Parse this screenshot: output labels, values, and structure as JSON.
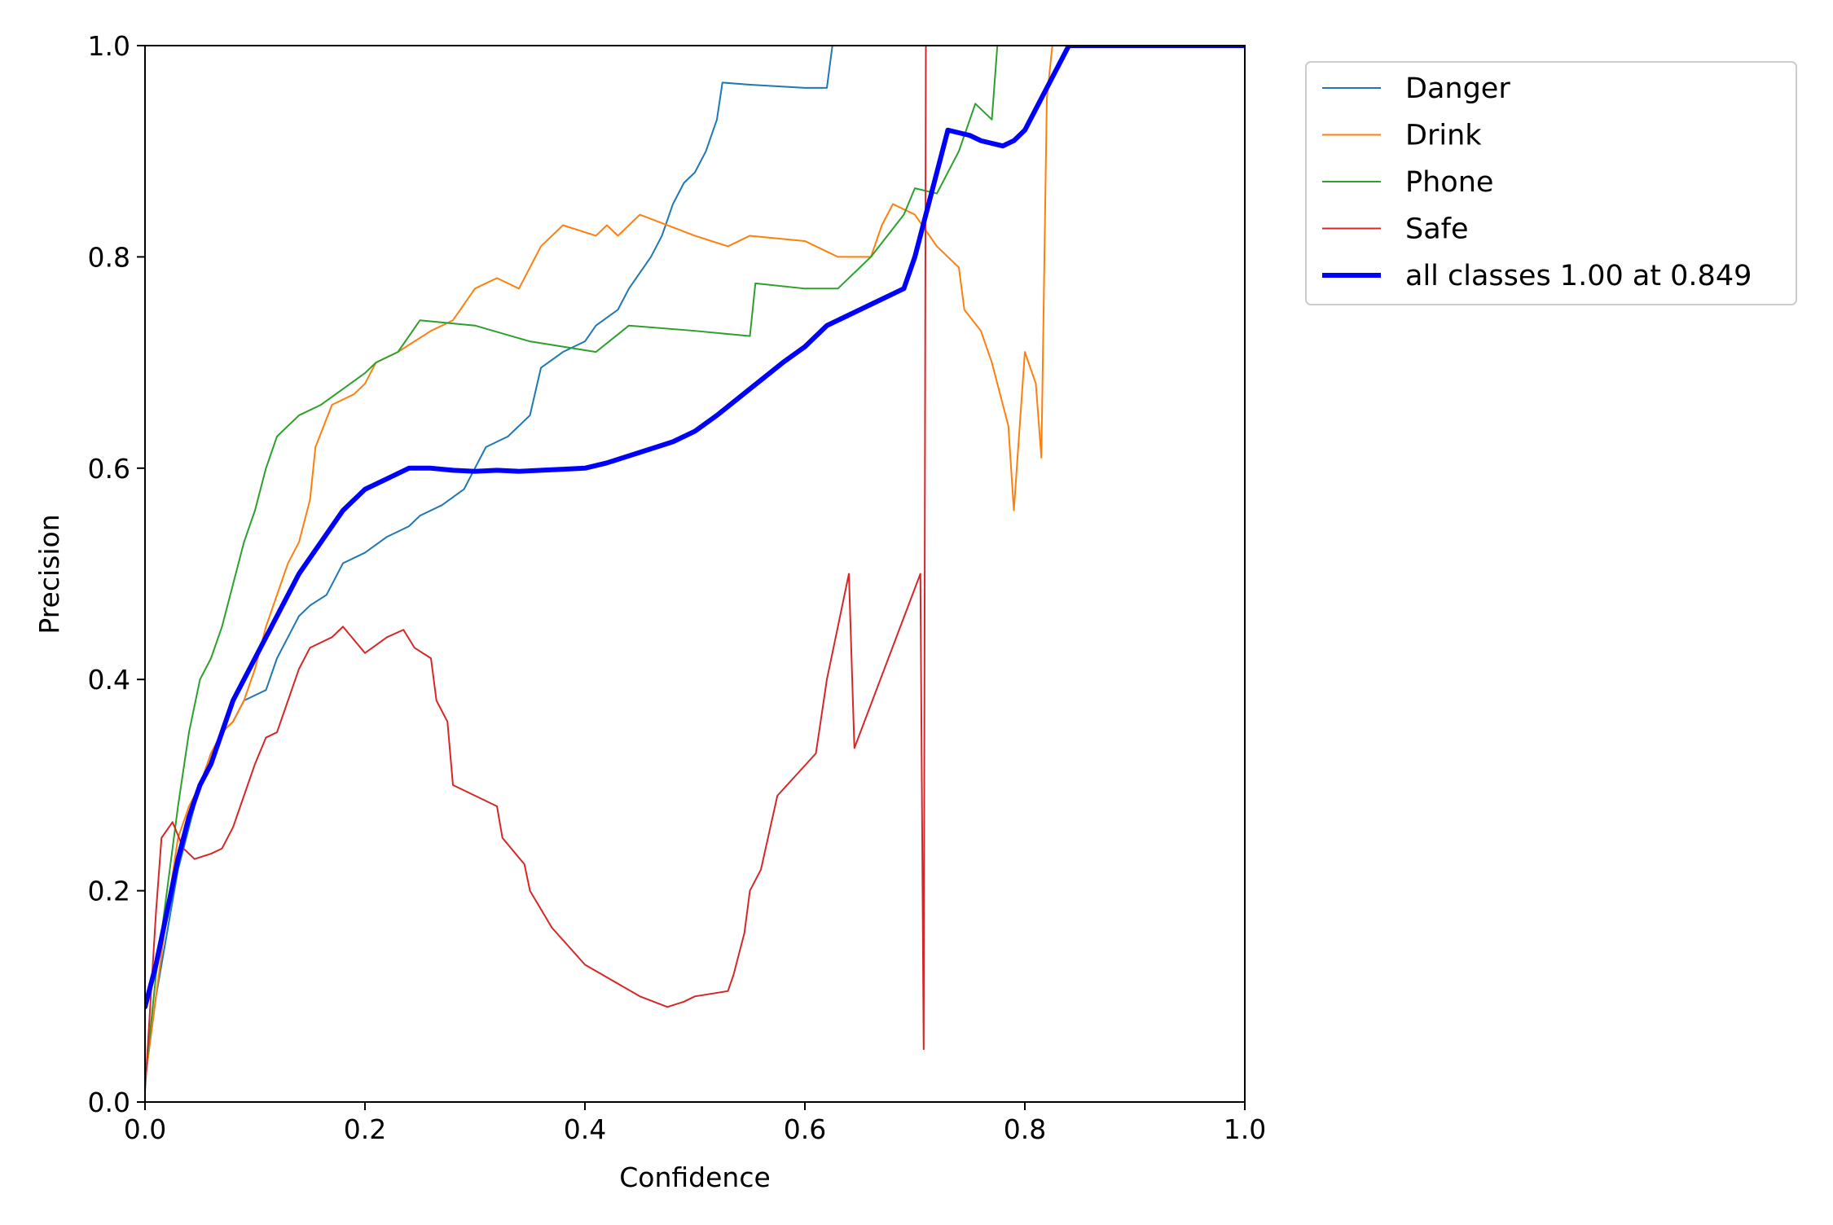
{
  "chart_data": {
    "type": "line",
    "xlabel": "Confidence",
    "ylabel": "Precision",
    "xlim": [
      0,
      1
    ],
    "ylim": [
      0,
      1
    ],
    "xticks": [
      "0.0",
      "0.2",
      "0.4",
      "0.6",
      "0.8",
      "1.0"
    ],
    "yticks": [
      "0.0",
      "0.2",
      "0.4",
      "0.6",
      "0.8",
      "1.0"
    ],
    "grid": false,
    "legend_position": "outside-top-right",
    "series": [
      {
        "name": "Danger",
        "color": "#1f77b4",
        "width": 2,
        "points": [
          [
            0.0,
            0.02
          ],
          [
            0.005,
            0.06
          ],
          [
            0.01,
            0.1
          ],
          [
            0.02,
            0.16
          ],
          [
            0.03,
            0.22
          ],
          [
            0.04,
            0.26
          ],
          [
            0.05,
            0.3
          ],
          [
            0.06,
            0.33
          ],
          [
            0.07,
            0.35
          ],
          [
            0.08,
            0.36
          ],
          [
            0.09,
            0.38
          ],
          [
            0.1,
            0.385
          ],
          [
            0.11,
            0.39
          ],
          [
            0.12,
            0.42
          ],
          [
            0.13,
            0.44
          ],
          [
            0.14,
            0.46
          ],
          [
            0.15,
            0.47
          ],
          [
            0.165,
            0.48
          ],
          [
            0.18,
            0.51
          ],
          [
            0.2,
            0.52
          ],
          [
            0.22,
            0.535
          ],
          [
            0.24,
            0.545
          ],
          [
            0.25,
            0.555
          ],
          [
            0.27,
            0.565
          ],
          [
            0.29,
            0.58
          ],
          [
            0.3,
            0.6
          ],
          [
            0.31,
            0.62
          ],
          [
            0.33,
            0.63
          ],
          [
            0.35,
            0.65
          ],
          [
            0.36,
            0.695
          ],
          [
            0.38,
            0.71
          ],
          [
            0.4,
            0.72
          ],
          [
            0.41,
            0.735
          ],
          [
            0.43,
            0.75
          ],
          [
            0.44,
            0.77
          ],
          [
            0.46,
            0.8
          ],
          [
            0.47,
            0.82
          ],
          [
            0.48,
            0.85
          ],
          [
            0.49,
            0.87
          ],
          [
            0.5,
            0.88
          ],
          [
            0.51,
            0.9
          ],
          [
            0.52,
            0.93
          ],
          [
            0.525,
            0.965
          ],
          [
            0.55,
            0.963
          ],
          [
            0.6,
            0.96
          ],
          [
            0.62,
            0.96
          ],
          [
            0.625,
            1.0
          ],
          [
            0.63,
            1.0
          ]
        ]
      },
      {
        "name": "Drink",
        "color": "#ff7f0e",
        "width": 2,
        "points": [
          [
            0.0,
            0.02
          ],
          [
            0.01,
            0.1
          ],
          [
            0.02,
            0.18
          ],
          [
            0.03,
            0.25
          ],
          [
            0.04,
            0.28
          ],
          [
            0.05,
            0.3
          ],
          [
            0.06,
            0.33
          ],
          [
            0.07,
            0.35
          ],
          [
            0.08,
            0.36
          ],
          [
            0.09,
            0.38
          ],
          [
            0.1,
            0.41
          ],
          [
            0.11,
            0.45
          ],
          [
            0.12,
            0.48
          ],
          [
            0.13,
            0.51
          ],
          [
            0.14,
            0.53
          ],
          [
            0.15,
            0.57
          ],
          [
            0.155,
            0.62
          ],
          [
            0.17,
            0.66
          ],
          [
            0.19,
            0.67
          ],
          [
            0.2,
            0.68
          ],
          [
            0.21,
            0.7
          ],
          [
            0.23,
            0.71
          ],
          [
            0.26,
            0.73
          ],
          [
            0.28,
            0.74
          ],
          [
            0.3,
            0.77
          ],
          [
            0.32,
            0.78
          ],
          [
            0.34,
            0.77
          ],
          [
            0.36,
            0.81
          ],
          [
            0.38,
            0.83
          ],
          [
            0.41,
            0.82
          ],
          [
            0.42,
            0.83
          ],
          [
            0.43,
            0.82
          ],
          [
            0.45,
            0.84
          ],
          [
            0.5,
            0.82
          ],
          [
            0.53,
            0.81
          ],
          [
            0.55,
            0.82
          ],
          [
            0.6,
            0.815
          ],
          [
            0.63,
            0.8
          ],
          [
            0.66,
            0.8
          ],
          [
            0.67,
            0.83
          ],
          [
            0.68,
            0.85
          ],
          [
            0.7,
            0.84
          ],
          [
            0.72,
            0.81
          ],
          [
            0.74,
            0.79
          ],
          [
            0.745,
            0.75
          ],
          [
            0.76,
            0.73
          ],
          [
            0.77,
            0.7
          ],
          [
            0.785,
            0.64
          ],
          [
            0.79,
            0.56
          ],
          [
            0.8,
            0.71
          ],
          [
            0.81,
            0.68
          ],
          [
            0.815,
            0.61
          ],
          [
            0.82,
            0.95
          ],
          [
            0.825,
            1.0
          ]
        ]
      },
      {
        "name": "Phone",
        "color": "#2ca02c",
        "width": 2,
        "points": [
          [
            0.0,
            0.02
          ],
          [
            0.01,
            0.12
          ],
          [
            0.02,
            0.2
          ],
          [
            0.03,
            0.28
          ],
          [
            0.04,
            0.35
          ],
          [
            0.05,
            0.4
          ],
          [
            0.06,
            0.42
          ],
          [
            0.07,
            0.45
          ],
          [
            0.08,
            0.49
          ],
          [
            0.09,
            0.53
          ],
          [
            0.1,
            0.56
          ],
          [
            0.11,
            0.6
          ],
          [
            0.12,
            0.63
          ],
          [
            0.14,
            0.65
          ],
          [
            0.16,
            0.66
          ],
          [
            0.18,
            0.675
          ],
          [
            0.2,
            0.69
          ],
          [
            0.21,
            0.7
          ],
          [
            0.23,
            0.71
          ],
          [
            0.25,
            0.74
          ],
          [
            0.3,
            0.735
          ],
          [
            0.35,
            0.72
          ],
          [
            0.38,
            0.715
          ],
          [
            0.41,
            0.71
          ],
          [
            0.44,
            0.735
          ],
          [
            0.5,
            0.73
          ],
          [
            0.55,
            0.725
          ],
          [
            0.555,
            0.775
          ],
          [
            0.6,
            0.77
          ],
          [
            0.63,
            0.77
          ],
          [
            0.66,
            0.8
          ],
          [
            0.69,
            0.84
          ],
          [
            0.7,
            0.865
          ],
          [
            0.72,
            0.86
          ],
          [
            0.74,
            0.9
          ],
          [
            0.755,
            0.945
          ],
          [
            0.77,
            0.93
          ],
          [
            0.775,
            1.0
          ]
        ]
      },
      {
        "name": "Safe",
        "color": "#d62728",
        "width": 2,
        "points": [
          [
            0.0,
            0.01
          ],
          [
            0.01,
            0.18
          ],
          [
            0.015,
            0.25
          ],
          [
            0.025,
            0.265
          ],
          [
            0.035,
            0.24
          ],
          [
            0.045,
            0.23
          ],
          [
            0.06,
            0.235
          ],
          [
            0.07,
            0.24
          ],
          [
            0.08,
            0.26
          ],
          [
            0.09,
            0.29
          ],
          [
            0.1,
            0.32
          ],
          [
            0.11,
            0.345
          ],
          [
            0.12,
            0.35
          ],
          [
            0.13,
            0.38
          ],
          [
            0.14,
            0.41
          ],
          [
            0.15,
            0.43
          ],
          [
            0.17,
            0.44
          ],
          [
            0.18,
            0.45
          ],
          [
            0.2,
            0.425
          ],
          [
            0.22,
            0.44
          ],
          [
            0.235,
            0.447
          ],
          [
            0.245,
            0.43
          ],
          [
            0.26,
            0.42
          ],
          [
            0.265,
            0.38
          ],
          [
            0.275,
            0.36
          ],
          [
            0.28,
            0.3
          ],
          [
            0.32,
            0.28
          ],
          [
            0.325,
            0.25
          ],
          [
            0.345,
            0.225
          ],
          [
            0.35,
            0.2
          ],
          [
            0.37,
            0.165
          ],
          [
            0.4,
            0.13
          ],
          [
            0.45,
            0.1
          ],
          [
            0.475,
            0.09
          ],
          [
            0.49,
            0.095
          ],
          [
            0.5,
            0.1
          ],
          [
            0.53,
            0.105
          ],
          [
            0.535,
            0.12
          ],
          [
            0.545,
            0.16
          ],
          [
            0.55,
            0.2
          ],
          [
            0.56,
            0.22
          ],
          [
            0.575,
            0.29
          ],
          [
            0.61,
            0.33
          ],
          [
            0.62,
            0.4
          ],
          [
            0.64,
            0.5
          ],
          [
            0.645,
            0.335
          ],
          [
            0.705,
            0.5
          ],
          [
            0.708,
            0.05
          ],
          [
            0.71,
            1.0
          ]
        ]
      },
      {
        "name": "all classes 1.00 at 0.849",
        "color": "#0000ff",
        "width": 6,
        "points": [
          [
            0.0,
            0.09
          ],
          [
            0.01,
            0.13
          ],
          [
            0.02,
            0.18
          ],
          [
            0.03,
            0.23
          ],
          [
            0.04,
            0.27
          ],
          [
            0.05,
            0.3
          ],
          [
            0.06,
            0.32
          ],
          [
            0.07,
            0.35
          ],
          [
            0.08,
            0.38
          ],
          [
            0.1,
            0.42
          ],
          [
            0.12,
            0.46
          ],
          [
            0.14,
            0.5
          ],
          [
            0.16,
            0.53
          ],
          [
            0.18,
            0.56
          ],
          [
            0.2,
            0.58
          ],
          [
            0.22,
            0.59
          ],
          [
            0.24,
            0.6
          ],
          [
            0.26,
            0.6
          ],
          [
            0.28,
            0.598
          ],
          [
            0.3,
            0.597
          ],
          [
            0.32,
            0.598
          ],
          [
            0.34,
            0.597
          ],
          [
            0.36,
            0.598
          ],
          [
            0.38,
            0.599
          ],
          [
            0.4,
            0.6
          ],
          [
            0.42,
            0.605
          ],
          [
            0.45,
            0.615
          ],
          [
            0.48,
            0.625
          ],
          [
            0.5,
            0.635
          ],
          [
            0.52,
            0.65
          ],
          [
            0.55,
            0.675
          ],
          [
            0.58,
            0.7
          ],
          [
            0.6,
            0.715
          ],
          [
            0.62,
            0.735
          ],
          [
            0.64,
            0.745
          ],
          [
            0.66,
            0.755
          ],
          [
            0.68,
            0.765
          ],
          [
            0.69,
            0.77
          ],
          [
            0.7,
            0.8
          ],
          [
            0.71,
            0.84
          ],
          [
            0.72,
            0.88
          ],
          [
            0.73,
            0.92
          ],
          [
            0.75,
            0.915
          ],
          [
            0.76,
            0.91
          ],
          [
            0.78,
            0.905
          ],
          [
            0.79,
            0.91
          ],
          [
            0.8,
            0.92
          ],
          [
            0.82,
            0.96
          ],
          [
            0.84,
            1.0
          ],
          [
            0.85,
            1.0
          ],
          [
            1.0,
            1.0
          ]
        ]
      }
    ]
  }
}
